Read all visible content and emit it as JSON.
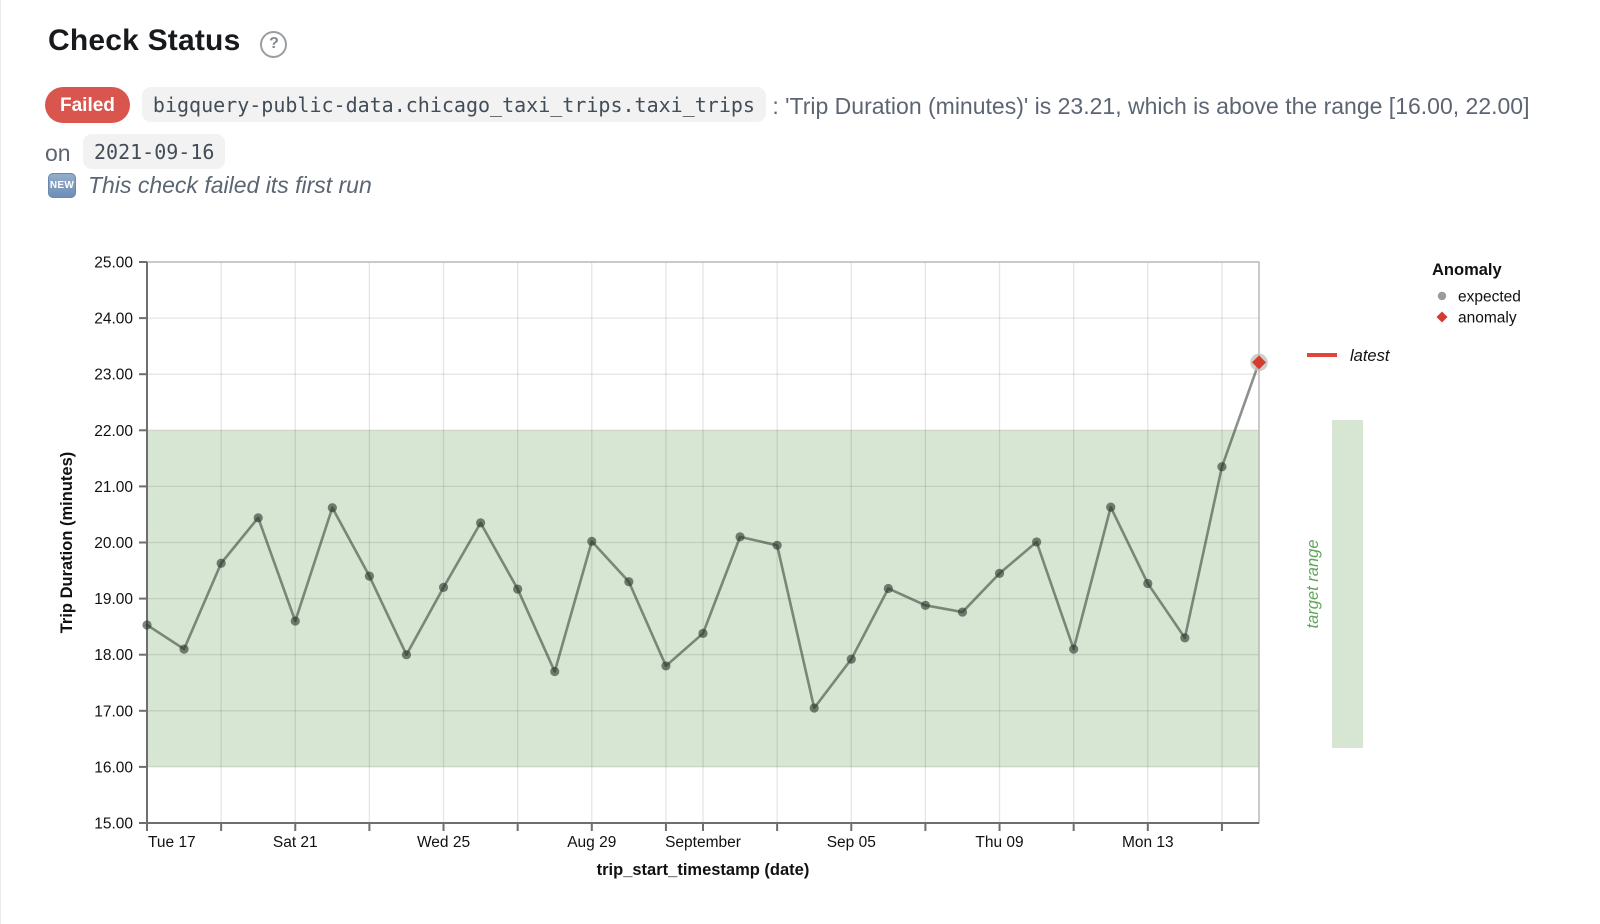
{
  "page": {
    "title": "Check Status",
    "help_icon": "?"
  },
  "status": {
    "badge_label": "Failed",
    "table_ref": "bigquery-public-data.chicago_taxi_trips.taxi_trips",
    "message": ": 'Trip Duration (minutes)' is 23.21, which is above the range [16.00, 22.00] on",
    "date": "2021-09-16",
    "new_badge_label": "NEW",
    "first_run_note": "This check failed its first run"
  },
  "colors": {
    "failed_badge_red": "#d9564f",
    "target_band_green": "#d7e6d2",
    "target_label_green": "#5fa65b",
    "anomaly_red": "#d63b30",
    "latest_red": "#e2443a",
    "expected_gray": "#9b9b9b",
    "line_stroke": "rgba(45,55,45,0.55)",
    "point_fill": "rgba(45,55,45,0.62)",
    "halo_gray": "#bfc3bf",
    "axis_dark": "#6e6e6e",
    "panel_border": "#b3b3b3",
    "grid": "rgba(0,0,0,0.10)",
    "tick_text": "#111111"
  },
  "chart_data": {
    "type": "line",
    "title": "",
    "xlabel": "trip_start_timestamp (date)",
    "ylabel": "Trip Duration (minutes)",
    "ylim": [
      15.0,
      25.0
    ],
    "y_ticks": [
      15,
      16,
      17,
      18,
      19,
      20,
      21,
      22,
      23,
      24,
      25
    ],
    "y_tick_labels": [
      "15.00",
      "16.00",
      "17.00",
      "18.00",
      "19.00",
      "20.00",
      "21.00",
      "22.00",
      "23.00",
      "24.00",
      "25.00"
    ],
    "target_range": [
      16.0,
      22.0
    ],
    "dates": [
      "2021-08-17",
      "2021-08-18",
      "2021-08-19",
      "2021-08-20",
      "2021-08-21",
      "2021-08-22",
      "2021-08-23",
      "2021-08-24",
      "2021-08-25",
      "2021-08-26",
      "2021-08-27",
      "2021-08-28",
      "2021-08-29",
      "2021-08-30",
      "2021-08-31",
      "2021-09-01",
      "2021-09-02",
      "2021-09-03",
      "2021-09-04",
      "2021-09-05",
      "2021-09-06",
      "2021-09-07",
      "2021-09-08",
      "2021-09-09",
      "2021-09-10",
      "2021-09-11",
      "2021-09-12",
      "2021-09-13",
      "2021-09-14",
      "2021-09-15",
      "2021-09-16"
    ],
    "values": [
      18.53,
      18.1,
      19.63,
      20.44,
      18.6,
      20.62,
      19.4,
      18.0,
      19.2,
      20.35,
      19.17,
      17.7,
      20.02,
      19.3,
      17.8,
      18.38,
      20.1,
      19.95,
      17.05,
      17.92,
      19.18,
      18.88,
      18.76,
      19.45,
      20.01,
      18.1,
      20.63,
      19.27,
      18.3,
      21.35,
      23.21
    ],
    "anomaly_index": 30,
    "anomaly_value": 23.21,
    "x_minor_tick_days": [
      2,
      4,
      6,
      8,
      10,
      12,
      14,
      15,
      17,
      19,
      21,
      23,
      25,
      27,
      29
    ],
    "x_tick_labels": [
      {
        "day": 0,
        "label": "Tue 17"
      },
      {
        "day": 4,
        "label": "Sat 21"
      },
      {
        "day": 8,
        "label": "Wed 25"
      },
      {
        "day": 12,
        "label": "Aug 29"
      },
      {
        "day": 15,
        "label": "September"
      },
      {
        "day": 19,
        "label": "Sep 05"
      },
      {
        "day": 23,
        "label": "Thu 09"
      },
      {
        "day": 27,
        "label": "Mon 13"
      }
    ],
    "legend": {
      "group_title": "Anomaly",
      "expected_label": "expected",
      "anomaly_label": "anomaly",
      "latest_label": "latest",
      "target_range_label": "target range"
    }
  }
}
